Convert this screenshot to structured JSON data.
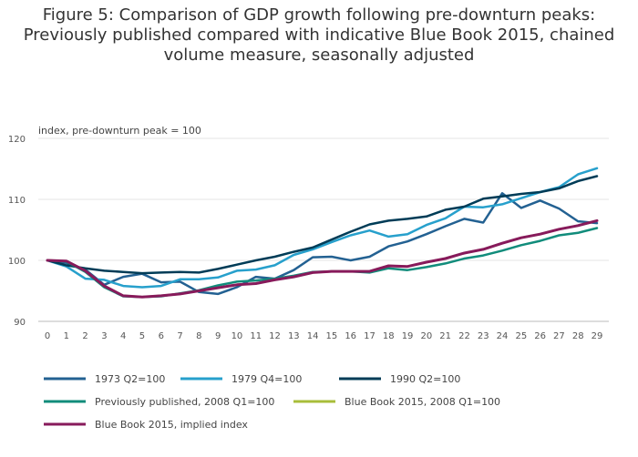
{
  "chart_data": {
    "type": "line",
    "title": "Figure 5: Comparison of GDP growth following pre-downturn peaks:\nPreviously published compared with indicative Blue Book 2015, chained\nvolume measure, seasonally adjusted",
    "ylabel": "index, pre-downturn peak = 100",
    "xlabel": "",
    "ylim": [
      90,
      120
    ],
    "yticks": [
      90,
      100,
      110,
      120
    ],
    "x": [
      0,
      1,
      2,
      3,
      4,
      5,
      6,
      7,
      8,
      9,
      10,
      11,
      12,
      13,
      14,
      15,
      16,
      17,
      18,
      19,
      20,
      21,
      22,
      23,
      24,
      25,
      26,
      27,
      28,
      29
    ],
    "grid": "horizontal",
    "legend_placement": "bottom",
    "series": [
      {
        "name": "1973 Q2=100",
        "color": "#236192",
        "values": [
          100,
          99.6,
          98.5,
          96.0,
          97.3,
          97.8,
          96.4,
          96.5,
          94.8,
          94.5,
          95.6,
          97.3,
          97.0,
          98.4,
          100.5,
          100.6,
          100.0,
          100.6,
          102.3,
          103.1,
          104.3,
          105.6,
          106.8,
          106.2,
          111.0,
          108.6,
          109.8,
          108.5,
          106.4,
          106.1
        ]
      },
      {
        "name": "1979 Q4=100",
        "color": "#27A0CC",
        "values": [
          100,
          99.0,
          97.0,
          96.8,
          95.8,
          95.6,
          95.8,
          96.9,
          96.9,
          97.2,
          98.3,
          98.5,
          99.2,
          100.9,
          101.8,
          103.0,
          104.1,
          104.9,
          103.9,
          104.3,
          105.8,
          106.9,
          108.8,
          108.7,
          109.2,
          110.2,
          111.2,
          112.0,
          114.1,
          115.1
        ]
      },
      {
        "name": "1990 Q2=100",
        "color": "#003C57",
        "values": [
          100,
          99.2,
          98.7,
          98.3,
          98.1,
          97.9,
          98.0,
          98.1,
          98.0,
          98.6,
          99.3,
          100.0,
          100.6,
          101.4,
          102.1,
          103.4,
          104.7,
          105.9,
          106.5,
          106.8,
          107.2,
          108.3,
          108.8,
          110.1,
          110.5,
          110.9,
          111.2,
          111.8,
          113.0,
          113.8
        ]
      },
      {
        "name": "Previously published, 2008 Q1=100",
        "color": "#118C7B",
        "values": [
          100,
          99.8,
          98.1,
          95.6,
          94.1,
          94.0,
          94.1,
          94.6,
          95.1,
          95.9,
          96.5,
          96.7,
          97.0,
          97.5,
          98.1,
          98.2,
          98.2,
          98.0,
          98.7,
          98.4,
          98.9,
          99.5,
          100.3,
          100.8,
          101.6,
          102.5,
          103.2,
          104.1,
          104.5,
          105.3
        ]
      },
      {
        "name": "Blue Book 2015, 2008 Q1=100",
        "color": "#A8BD3A",
        "values": [
          100,
          99.9,
          98.3,
          95.8,
          94.2,
          94.0,
          94.2,
          94.5,
          95.0,
          95.5,
          96.0,
          96.2,
          96.8,
          97.3,
          98.0,
          98.2,
          98.2,
          98.2,
          99.1,
          99.0,
          99.7,
          100.3,
          101.2,
          101.8,
          102.8,
          103.7,
          104.3,
          105.1,
          105.7,
          106.5
        ]
      },
      {
        "name": "Blue Book 2015, implied index",
        "color": "#871A5B",
        "values": [
          100,
          99.9,
          98.3,
          95.8,
          94.2,
          94.0,
          94.2,
          94.5,
          95.0,
          95.5,
          96.0,
          96.2,
          96.8,
          97.3,
          98.0,
          98.2,
          98.2,
          98.2,
          99.1,
          99.0,
          99.7,
          100.3,
          101.2,
          101.8,
          102.8,
          103.7,
          104.3,
          105.1,
          105.7,
          106.5
        ]
      }
    ]
  }
}
